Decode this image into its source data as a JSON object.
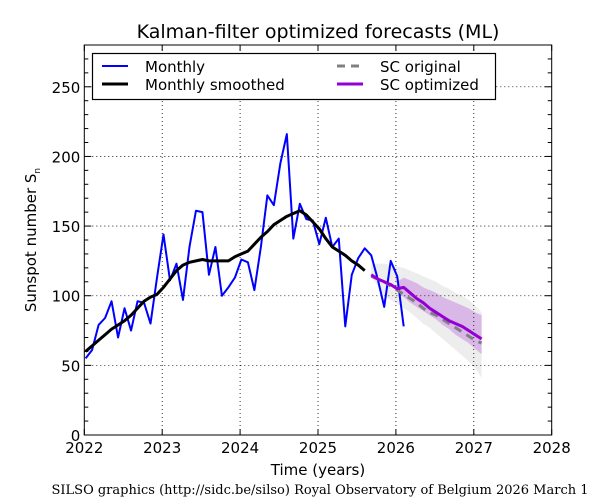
{
  "chart_data": {
    "type": "line",
    "title": "Kalman-filter optimized forecasts (ML)",
    "xlabel": "Time (years)",
    "ylabel": "Sunspot number S",
    "ylabel_subscript": "n",
    "xlim": [
      2022,
      2028
    ],
    "ylim": [
      0,
      280
    ],
    "xticks": [
      "2022",
      "2023",
      "2024",
      "2025",
      "2026",
      "2027",
      "2028"
    ],
    "yticks": [
      "0",
      "50",
      "100",
      "150",
      "200",
      "250"
    ],
    "grid": true,
    "legend_position": "top-left",
    "legend": [
      {
        "label": "Monthly",
        "style": "solid",
        "color": "#0000ff"
      },
      {
        "label": "Monthly smoothed",
        "style": "solid",
        "color": "#000000"
      },
      {
        "label": "SC original",
        "style": "dashed",
        "color": "#808080"
      },
      {
        "label": "SC optimized",
        "style": "solid",
        "color": "#9400d3"
      }
    ],
    "series": [
      {
        "name": "Monthly",
        "color": "#0000ff",
        "start_month": "2022-01",
        "values": [
          55,
          61,
          79,
          84,
          96,
          70,
          91,
          75,
          96,
          95,
          80,
          113,
          144,
          111,
          123,
          97,
          135,
          161,
          160,
          115,
          135,
          100,
          106,
          113,
          126,
          124,
          104,
          135,
          172,
          165,
          195,
          216,
          141,
          166,
          155,
          154,
          137,
          156,
          135,
          141,
          78,
          115,
          127,
          134,
          129,
          112,
          92,
          125,
          114,
          78
        ]
      },
      {
        "name": "Monthly smoothed",
        "color": "#000000",
        "start_month": "2022-01",
        "values": [
          60,
          64,
          68,
          72,
          76,
          79,
          82,
          86,
          91,
          96,
          99,
          101,
          106,
          112,
          118,
          122,
          124,
          125,
          126,
          125,
          125,
          125,
          125,
          128,
          130,
          132,
          137,
          142,
          146,
          151,
          154,
          157,
          159,
          161,
          158,
          153,
          148,
          141,
          135,
          132,
          129,
          125,
          122,
          118
        ]
      },
      {
        "name": "SC original",
        "color": "#808080",
        "start_month": "2025-09",
        "values": [
          114,
          112,
          110,
          107,
          104,
          101,
          98,
          95,
          91,
          88,
          86,
          83,
          80,
          77,
          74,
          71,
          68,
          66
        ]
      },
      {
        "name": "SC optimized",
        "color": "#9400d3",
        "start_month": "2025-09",
        "values": [
          115,
          112,
          110,
          108,
          105,
          106,
          102,
          98,
          95,
          91,
          88,
          85,
          82,
          80,
          78,
          75,
          72,
          69
        ]
      }
    ],
    "bands": [
      {
        "name": "SC original uncertainty",
        "color": "#ebebeb",
        "start_month": "2025-09",
        "upper": [
          122,
          123,
          123,
          122,
          121,
          120,
          118,
          116,
          114,
          112,
          110,
          107,
          105,
          102,
          100,
          97,
          93,
          88
        ],
        "lower": [
          114,
          107,
          100,
          97,
          94,
          91,
          88,
          84,
          80,
          77,
          73,
          69,
          65,
          61,
          57,
          53,
          48,
          41
        ]
      },
      {
        "name": "SC optimized uncertainty",
        "color": "#d6b0e6",
        "start_month": "2026-01",
        "upper": [
          110,
          113,
          111,
          109,
          106,
          104,
          102,
          99,
          97,
          95,
          93,
          91,
          88,
          86
        ],
        "lower": [
          103,
          99,
          95,
          92,
          89,
          86,
          83,
          79,
          76,
          72,
          69,
          66,
          62,
          58
        ]
      }
    ]
  },
  "footer": "SILSO graphics (http://sidc.be/silso)  Royal Observatory of Belgium  2026 March 1"
}
